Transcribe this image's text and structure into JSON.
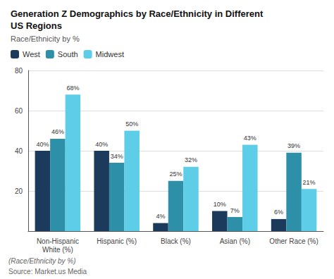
{
  "chart_data": {
    "type": "bar",
    "title": "Generation Z Demographics by Race/Ethnicity in Different\nUS Regions",
    "subtitle": "Race/Ethnicity by %",
    "categories": [
      "Non-Hispanic\nWhite (%)",
      "Hispanic (%)",
      "Black (%)",
      "Asian (%)",
      "Other Race (%)"
    ],
    "series": [
      {
        "name": "West",
        "color": "#1b3a5c",
        "values": [
          40,
          40,
          4,
          10,
          6
        ],
        "value_labels": [
          "40%",
          "40%",
          "4%",
          "10%",
          "6%"
        ]
      },
      {
        "name": "South",
        "color": "#2e8fa8",
        "values": [
          46,
          34,
          25,
          7,
          39
        ],
        "value_labels": [
          "46%",
          "34%",
          "25%",
          "7%",
          "39%"
        ]
      },
      {
        "name": "Midwest",
        "color": "#5ecde8",
        "values": [
          68,
          50,
          32,
          43,
          21
        ],
        "value_labels": [
          "68%",
          "50%",
          "32%",
          "43%",
          "21%"
        ]
      }
    ],
    "ylim": [
      0,
      80
    ],
    "yticks": [
      20,
      40,
      60,
      80
    ],
    "grid": true,
    "legend": "upper left",
    "data_labels": true,
    "annotations": [
      "(Race/Ethnicity by %)",
      "Source: Market.us Media"
    ]
  }
}
